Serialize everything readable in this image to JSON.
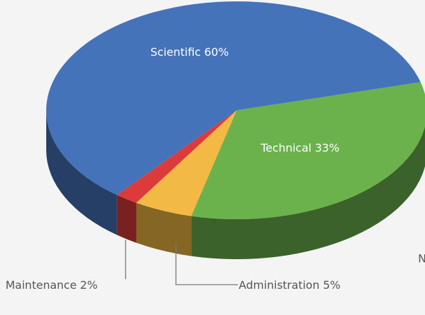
{
  "chart_data": {
    "type": "pie",
    "categories": [
      "Technical",
      "Administration",
      "Maintenance",
      "Scientific"
    ],
    "values": [
      33,
      5,
      2,
      60
    ],
    "value_labels": [
      "33%",
      "5%",
      "2%",
      "60%"
    ],
    "colors": [
      "#6bb24c",
      "#f2b944",
      "#dc3b3b",
      "#4573b9"
    ],
    "annotations": [
      "N"
    ]
  }
}
